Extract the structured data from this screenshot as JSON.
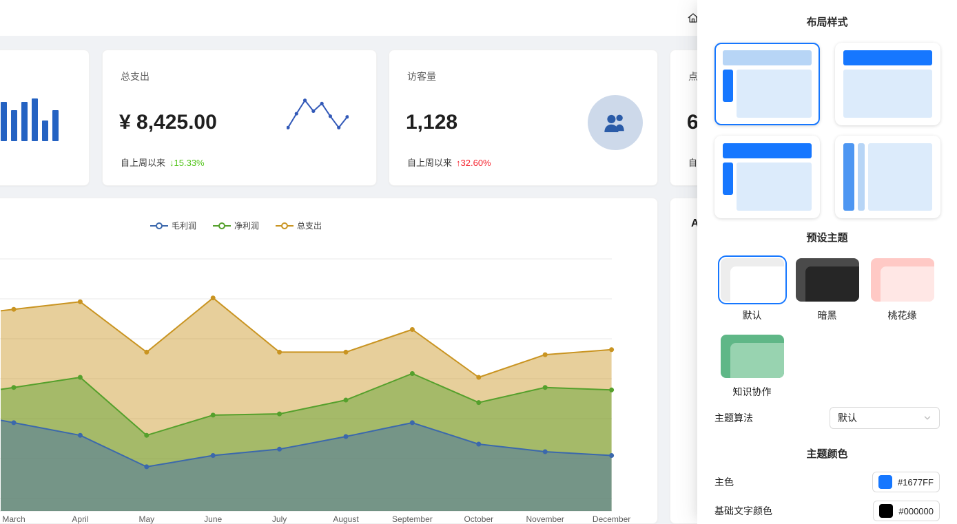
{
  "colors": {
    "primary": "#1677FF",
    "page_bg": "#f0f2f5",
    "delta_down_green": "#52c41a",
    "delta_up_red": "#f5222d"
  },
  "header": {
    "home_icon": "home"
  },
  "stat_cards": {
    "bar_card": {
      "bar_color": "#2462c2",
      "bars": [
        57,
        45,
        57,
        62,
        30,
        45
      ]
    },
    "expense": {
      "title": "总支出",
      "value": "¥ 8,425.00",
      "footer_label": "自上周以来",
      "delta_text": "↓15.33%",
      "delta_direction": "down",
      "sparkline_color": "#3259b8",
      "sparkline": [
        8,
        52,
        94,
        60,
        84,
        44,
        8,
        42
      ]
    },
    "visitors": {
      "title": "访客量",
      "value": "1,128",
      "footer_label": "自上周以来",
      "delta_text": "↑32.60%",
      "delta_direction": "up",
      "icon": "team-icon",
      "icon_bg": "#cdd9ea",
      "icon_color": "#2b5ca8"
    },
    "partial": {
      "title": "点",
      "value": "6",
      "footer_label": "自"
    }
  },
  "chart_data": {
    "type": "area",
    "title": "",
    "categories": [
      "March",
      "April",
      "May",
      "June",
      "July",
      "August",
      "September",
      "October",
      "November",
      "December"
    ],
    "series": [
      {
        "name": "毛利润",
        "color": "#3b68ac",
        "values": [
          35,
          30,
          17.5,
          22,
          24.5,
          29.5,
          35,
          26.5,
          23.5,
          22
        ]
      },
      {
        "name": "净利润",
        "color": "#55a02c",
        "values": [
          49,
          53,
          30,
          38,
          38.5,
          44,
          54.5,
          43,
          49,
          48
        ]
      },
      {
        "name": "总支出",
        "color": "#c99421",
        "values": [
          80,
          83,
          63,
          84.5,
          63,
          63,
          72,
          53,
          62,
          64
        ]
      }
    ],
    "ylim": [
      0,
      100
    ],
    "y_axis_labels_visible": false,
    "grid": true,
    "legend_position": "top-center",
    "note": "y-axis tick labels are cropped out of view; values estimated as percent of plot height"
  },
  "right_card": {
    "title": "A"
  },
  "drawer": {
    "layout_section": {
      "title": "布局样式",
      "selected_index": 0,
      "palette": {
        "bright": "#1677FF",
        "medium": "#4d96f2",
        "header_light": "#b7d5f6",
        "sidebar_light": "#b7d5f6",
        "pale": "#dcebfb"
      },
      "options": [
        {
          "key": "side"
        },
        {
          "key": "top"
        },
        {
          "key": "mix"
        },
        {
          "key": "double-side"
        }
      ]
    },
    "theme_section": {
      "title": "预设主题",
      "selected_index": 0,
      "options": [
        {
          "key": "default",
          "label": "默认",
          "bg": "#ededed",
          "inner": "#ffffff"
        },
        {
          "key": "dark",
          "label": "暗黑",
          "bg": "#4a4a4a",
          "inner": "#262626"
        },
        {
          "key": "peach",
          "label": "桃花缘",
          "bg": "#ffc9c5",
          "inner": "#ffe7e5"
        },
        {
          "key": "knowledge",
          "label": "知识协作",
          "bg": "#5fb787",
          "inner": "#98d3b0"
        }
      ]
    },
    "algorithm": {
      "label": "主题算法",
      "value": "默认"
    },
    "color_section": {
      "title": "主题颜色",
      "rows": [
        {
          "key": "primary",
          "label": "主色",
          "swatch": "#1677FF",
          "value": "#1677FF"
        },
        {
          "key": "base-text",
          "label": "基础文字颜色",
          "swatch": "#000000",
          "value": "#000000"
        }
      ]
    }
  }
}
